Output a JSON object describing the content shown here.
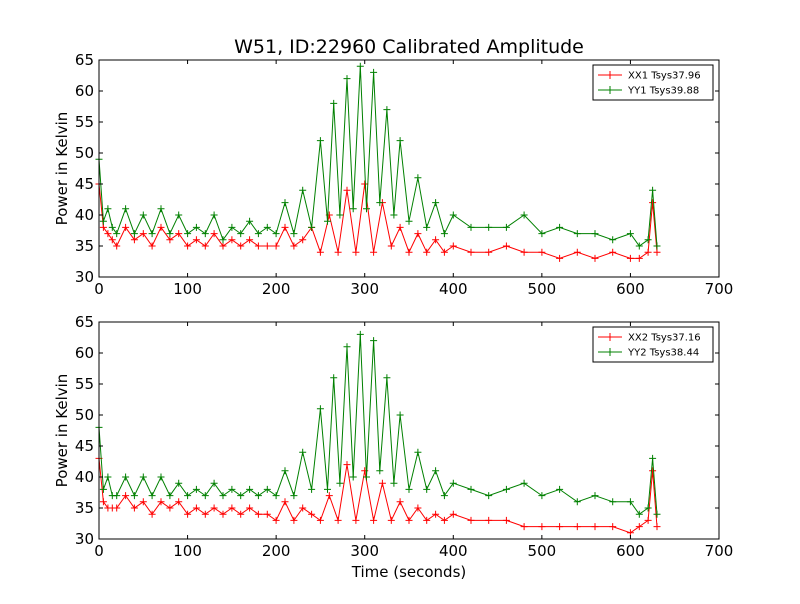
{
  "figure": {
    "title": "W51, ID:22960 Calibrated Amplitude",
    "xlabel": "Time (seconds)"
  },
  "chart_data": [
    {
      "type": "line",
      "title": "W51, ID:22960 Calibrated Amplitude",
      "xlabel": "",
      "ylabel": "Power in Kelvin",
      "xlim": [
        0,
        700
      ],
      "ylim": [
        30,
        65
      ],
      "xticks": [
        "0",
        "100",
        "200",
        "300",
        "400",
        "500",
        "600",
        "700"
      ],
      "yticks": [
        "30",
        "35",
        "40",
        "45",
        "50",
        "55",
        "60",
        "65"
      ],
      "grid": false,
      "legend_position": "top-right",
      "marker": "+",
      "series": [
        {
          "name": "XX1 Tsys37.96",
          "color": "#ff0000",
          "x": [
            0,
            5,
            10,
            15,
            20,
            30,
            40,
            50,
            60,
            70,
            80,
            90,
            100,
            110,
            120,
            130,
            140,
            150,
            160,
            170,
            180,
            190,
            200,
            210,
            220,
            230,
            240,
            250,
            260,
            270,
            280,
            290,
            300,
            310,
            320,
            330,
            340,
            350,
            360,
            370,
            380,
            390,
            400,
            420,
            440,
            460,
            480,
            500,
            520,
            540,
            560,
            580,
            600,
            610,
            620,
            625,
            630
          ],
          "y": [
            45,
            38,
            37,
            36,
            35,
            38,
            36,
            37,
            35,
            38,
            36,
            37,
            35,
            36,
            35,
            37,
            35,
            36,
            35,
            36,
            35,
            35,
            35,
            38,
            35,
            36,
            38,
            34,
            40,
            34,
            44,
            34,
            45,
            34,
            42,
            35,
            38,
            34,
            37,
            34,
            36,
            34,
            35,
            34,
            34,
            35,
            34,
            34,
            33,
            34,
            33,
            34,
            33,
            33,
            34,
            42,
            34
          ]
        },
        {
          "name": "YY1 Tsys39.88",
          "color": "#008000",
          "x": [
            0,
            5,
            10,
            15,
            20,
            30,
            40,
            50,
            60,
            70,
            80,
            90,
            100,
            110,
            120,
            130,
            140,
            150,
            160,
            170,
            180,
            190,
            200,
            210,
            220,
            230,
            240,
            250,
            258,
            265,
            272,
            280,
            287,
            295,
            302,
            310,
            317,
            325,
            333,
            340,
            350,
            360,
            370,
            380,
            390,
            400,
            420,
            440,
            460,
            480,
            500,
            520,
            540,
            560,
            580,
            600,
            610,
            620,
            625,
            630
          ],
          "y": [
            49,
            39,
            41,
            38,
            37,
            41,
            37,
            40,
            37,
            41,
            37,
            40,
            37,
            38,
            37,
            40,
            36,
            38,
            37,
            39,
            37,
            38,
            37,
            42,
            37,
            44,
            38,
            52,
            39,
            58,
            40,
            62,
            41,
            64,
            41,
            63,
            42,
            57,
            40,
            52,
            39,
            46,
            38,
            42,
            37,
            40,
            38,
            38,
            38,
            40,
            37,
            38,
            37,
            37,
            36,
            37,
            35,
            36,
            44,
            35
          ]
        }
      ]
    },
    {
      "type": "line",
      "xlabel": "Time (seconds)",
      "ylabel": "Power in Kelvin",
      "xlim": [
        0,
        700
      ],
      "ylim": [
        30,
        65
      ],
      "xticks": [
        "0",
        "100",
        "200",
        "300",
        "400",
        "500",
        "600",
        "700"
      ],
      "yticks": [
        "30",
        "35",
        "40",
        "45",
        "50",
        "55",
        "60",
        "65"
      ],
      "grid": false,
      "legend_position": "top-right",
      "marker": "+",
      "series": [
        {
          "name": "XX2 Tsys37.16",
          "color": "#ff0000",
          "x": [
            0,
            5,
            10,
            15,
            20,
            30,
            40,
            50,
            60,
            70,
            80,
            90,
            100,
            110,
            120,
            130,
            140,
            150,
            160,
            170,
            180,
            190,
            200,
            210,
            220,
            230,
            240,
            250,
            260,
            270,
            280,
            290,
            300,
            310,
            320,
            330,
            340,
            350,
            360,
            370,
            380,
            390,
            400,
            420,
            440,
            460,
            480,
            500,
            520,
            540,
            560,
            580,
            600,
            610,
            620,
            625,
            630
          ],
          "y": [
            43,
            36,
            35,
            35,
            35,
            37,
            35,
            36,
            34,
            36,
            35,
            36,
            34,
            35,
            34,
            35,
            34,
            35,
            34,
            35,
            34,
            34,
            33,
            36,
            33,
            35,
            34,
            33,
            37,
            33,
            42,
            33,
            41,
            33,
            39,
            33,
            36,
            33,
            35,
            33,
            34,
            33,
            34,
            33,
            33,
            33,
            32,
            32,
            32,
            32,
            32,
            32,
            31,
            32,
            33,
            41,
            32
          ]
        },
        {
          "name": "YY2 Tsys38.44",
          "color": "#008000",
          "x": [
            0,
            5,
            10,
            15,
            20,
            30,
            40,
            50,
            60,
            70,
            80,
            90,
            100,
            110,
            120,
            130,
            140,
            150,
            160,
            170,
            180,
            190,
            200,
            210,
            220,
            230,
            240,
            250,
            258,
            265,
            272,
            280,
            287,
            295,
            302,
            310,
            317,
            325,
            333,
            340,
            350,
            360,
            370,
            380,
            390,
            400,
            420,
            440,
            460,
            480,
            500,
            520,
            540,
            560,
            580,
            600,
            610,
            620,
            625,
            630
          ],
          "y": [
            48,
            38,
            40,
            37,
            37,
            40,
            37,
            40,
            37,
            40,
            37,
            39,
            37,
            38,
            37,
            39,
            37,
            38,
            37,
            38,
            37,
            38,
            37,
            41,
            37,
            44,
            38,
            51,
            38,
            56,
            39,
            61,
            40,
            63,
            40,
            62,
            41,
            56,
            39,
            50,
            38,
            44,
            38,
            41,
            37,
            39,
            38,
            37,
            38,
            39,
            37,
            38,
            36,
            37,
            36,
            36,
            34,
            35,
            43,
            34
          ]
        }
      ]
    }
  ]
}
